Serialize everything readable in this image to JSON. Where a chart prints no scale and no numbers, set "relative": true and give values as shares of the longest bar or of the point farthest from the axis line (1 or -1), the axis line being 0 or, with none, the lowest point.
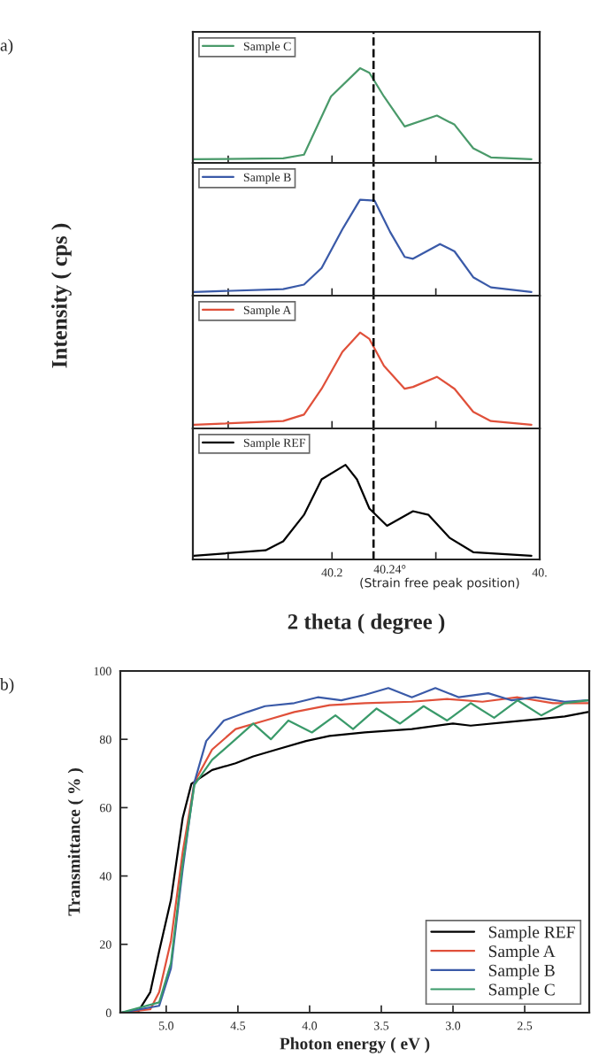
{
  "chart_data": [
    {
      "type": "line",
      "annotations": [
        "a)"
      ],
      "relative": true,
      "xlim": [
        40.066,
        40.4
      ],
      "xticks": [
        {
          "value": 40.1,
          "label": null
        },
        {
          "value": 40.2,
          "label": null
        },
        {
          "value": 40.3,
          "label": null
        },
        {
          "value": 40.4,
          "label": null
        }
      ],
      "tick_labels": false,
      "legend": "top left",
      "ref_lines": [
        {
          "axis": "x",
          "value": 40.24,
          "label": null,
          "line_style": "dashed",
          "color": "#000000"
        }
      ],
      "series": [
        {
          "name": "Sample C",
          "color": "#4a9a6a",
          "x": [
            40.067,
            40.153,
            40.173,
            40.199,
            40.227,
            40.236,
            40.25,
            40.27,
            40.301,
            40.318,
            40.336,
            40.353,
            40.392
          ],
          "values": [
            0,
            0.01,
            0.05,
            0.69,
            1,
            0.95,
            0.69,
            0.36,
            0.48,
            0.38,
            0.12,
            0.02,
            0
          ]
        }
      ]
    },
    {
      "type": "line",
      "ylabel": "Intensity ( cps )",
      "relative": true,
      "xlim": [
        40.066,
        40.4
      ],
      "xticks": [
        {
          "value": 40.1,
          "label": null
        },
        {
          "value": 40.2,
          "label": null
        },
        {
          "value": 40.3,
          "label": null
        },
        {
          "value": 40.4,
          "label": null
        }
      ],
      "tick_labels": false,
      "legend": "top left",
      "ref_lines": [
        {
          "axis": "x",
          "value": 40.24,
          "label": null,
          "line_style": "dashed",
          "color": "#000000"
        }
      ],
      "series": [
        {
          "name": "Sample B",
          "color": "#3a5aa8",
          "x": [
            40.067,
            40.153,
            40.173,
            40.19,
            40.21,
            40.227,
            40.241,
            40.256,
            40.27,
            40.278,
            40.304,
            40.318,
            40.336,
            40.353,
            40.392
          ],
          "values": [
            0,
            0.03,
            0.08,
            0.26,
            0.68,
            1,
            0.99,
            0.65,
            0.38,
            0.36,
            0.52,
            0.44,
            0.16,
            0.05,
            0
          ]
        }
      ]
    },
    {
      "type": "line",
      "relative": true,
      "xlim": [
        40.066,
        40.4
      ],
      "xticks": [
        {
          "value": 40.1,
          "label": null
        },
        {
          "value": 40.2,
          "label": null
        },
        {
          "value": 40.3,
          "label": null
        },
        {
          "value": 40.4,
          "label": null
        }
      ],
      "tick_labels": false,
      "legend": "top left",
      "ref_lines": [
        {
          "axis": "x",
          "value": 40.24,
          "label": null,
          "line_style": "dashed",
          "color": "#000000"
        }
      ],
      "series": [
        {
          "name": "Sample A",
          "color": "#e0503a",
          "x": [
            40.067,
            40.153,
            40.173,
            40.19,
            40.21,
            40.227,
            40.236,
            40.25,
            40.27,
            40.278,
            40.301,
            40.318,
            40.336,
            40.353,
            40.392
          ],
          "values": [
            0,
            0.04,
            0.11,
            0.39,
            0.79,
            1,
            0.93,
            0.64,
            0.39,
            0.41,
            0.52,
            0.39,
            0.14,
            0.04,
            0
          ]
        }
      ]
    },
    {
      "type": "line",
      "xlabel": "2 theta ( degree )",
      "annotations": [
        "(Strain free peak position)"
      ],
      "relative": true,
      "xlim": [
        40.066,
        40.4
      ],
      "xticks": [
        {
          "value": 40.1,
          "label": null
        },
        {
          "value": 40.2,
          "label": "40.2"
        },
        {
          "value": 40.3,
          "label": null
        },
        {
          "value": 40.4,
          "label": "40."
        }
      ],
      "tick_labels": "x",
      "legend": "top left",
      "ref_lines": [
        {
          "axis": "x",
          "value": 40.24,
          "label": "40.24°",
          "line_style": "dashed",
          "color": "#000000"
        }
      ],
      "series": [
        {
          "name": "Sample REF",
          "color": "#000000",
          "x": [
            40.067,
            40.136,
            40.153,
            40.173,
            40.19,
            40.213,
            40.224,
            40.236,
            40.253,
            40.278,
            40.293,
            40.313,
            40.336,
            40.392
          ],
          "values": [
            0,
            0.06,
            0.16,
            0.45,
            0.84,
            1,
            0.84,
            0.52,
            0.33,
            0.49,
            0.45,
            0.2,
            0.04,
            0
          ]
        }
      ]
    },
    {
      "type": "line",
      "annotations": [
        "b)"
      ],
      "xlabel": "Photon energy ( eV )",
      "ylabel": "Transmittance ( % )",
      "xlim": [
        5.32,
        2.05
      ],
      "xticks": [
        {
          "value": 5.0,
          "label": "5.0"
        },
        {
          "value": 4.5,
          "label": "4.5"
        },
        {
          "value": 4.0,
          "label": "4.0"
        },
        {
          "value": 3.5,
          "label": "3.5"
        },
        {
          "value": 3.0,
          "label": "3.0"
        },
        {
          "value": 2.5,
          "label": "2.5"
        }
      ],
      "ylim": [
        0,
        100
      ],
      "yticks": [
        0,
        20,
        40,
        60,
        80,
        100
      ],
      "legend": "bottom right",
      "series": [
        {
          "name": "Sample REF",
          "color": "#000000",
          "x": [
            5.316,
            5.193,
            5.111,
            5.049,
            4.967,
            4.885,
            4.824,
            4.68,
            4.516,
            4.393,
            4.23,
            4.025,
            3.861,
            3.615,
            3.287,
            3.0,
            2.877,
            2.631,
            2.385,
            2.221,
            2.06
          ],
          "values": [
            0,
            0.5,
            6,
            18,
            33,
            57,
            67,
            71,
            73,
            75,
            77,
            79.5,
            81,
            82,
            83,
            84.6,
            84,
            85,
            86,
            86.7,
            88
          ]
        },
        {
          "name": "Sample A",
          "color": "#e0503a",
          "x": [
            5.316,
            5.111,
            5.049,
            4.967,
            4.885,
            4.803,
            4.68,
            4.516,
            4.311,
            4.107,
            3.861,
            3.615,
            3.287,
            3.041,
            2.795,
            2.549,
            2.303,
            2.06
          ],
          "values": [
            0,
            1,
            6,
            21,
            47,
            67.5,
            77,
            83,
            85.5,
            88,
            90,
            90.6,
            91,
            91.8,
            91,
            92.3,
            90.6,
            90.6
          ]
        },
        {
          "name": "Sample B",
          "color": "#3a5aa8",
          "x": [
            5.316,
            5.049,
            4.967,
            4.885,
            4.803,
            4.721,
            4.598,
            4.434,
            4.311,
            4.107,
            3.943,
            3.779,
            3.615,
            3.451,
            3.287,
            3.123,
            2.959,
            2.754,
            2.59,
            2.426,
            2.221,
            2.06
          ],
          "values": [
            0,
            2,
            13,
            42,
            67.5,
            79.5,
            85.5,
            88,
            89.7,
            90.6,
            92.3,
            91.4,
            93,
            95,
            92.3,
            95,
            92.3,
            93.5,
            91.4,
            92.3,
            91,
            91.4
          ]
        },
        {
          "name": "Sample C",
          "color": "#3a9a6a",
          "x": [
            5.316,
            5.049,
            4.967,
            4.885,
            4.803,
            4.68,
            4.516,
            4.393,
            4.27,
            4.148,
            3.984,
            3.82,
            3.697,
            3.533,
            3.369,
            3.205,
            3.041,
            2.877,
            2.713,
            2.549,
            2.385,
            2.221,
            2.06
          ],
          "values": [
            0,
            3,
            14.5,
            43.6,
            66.7,
            74,
            80,
            84.6,
            80,
            85.5,
            82,
            87,
            83,
            89,
            84.6,
            89.7,
            85.5,
            90.6,
            86.3,
            91.4,
            87,
            90.6,
            91.4
          ]
        }
      ]
    }
  ]
}
